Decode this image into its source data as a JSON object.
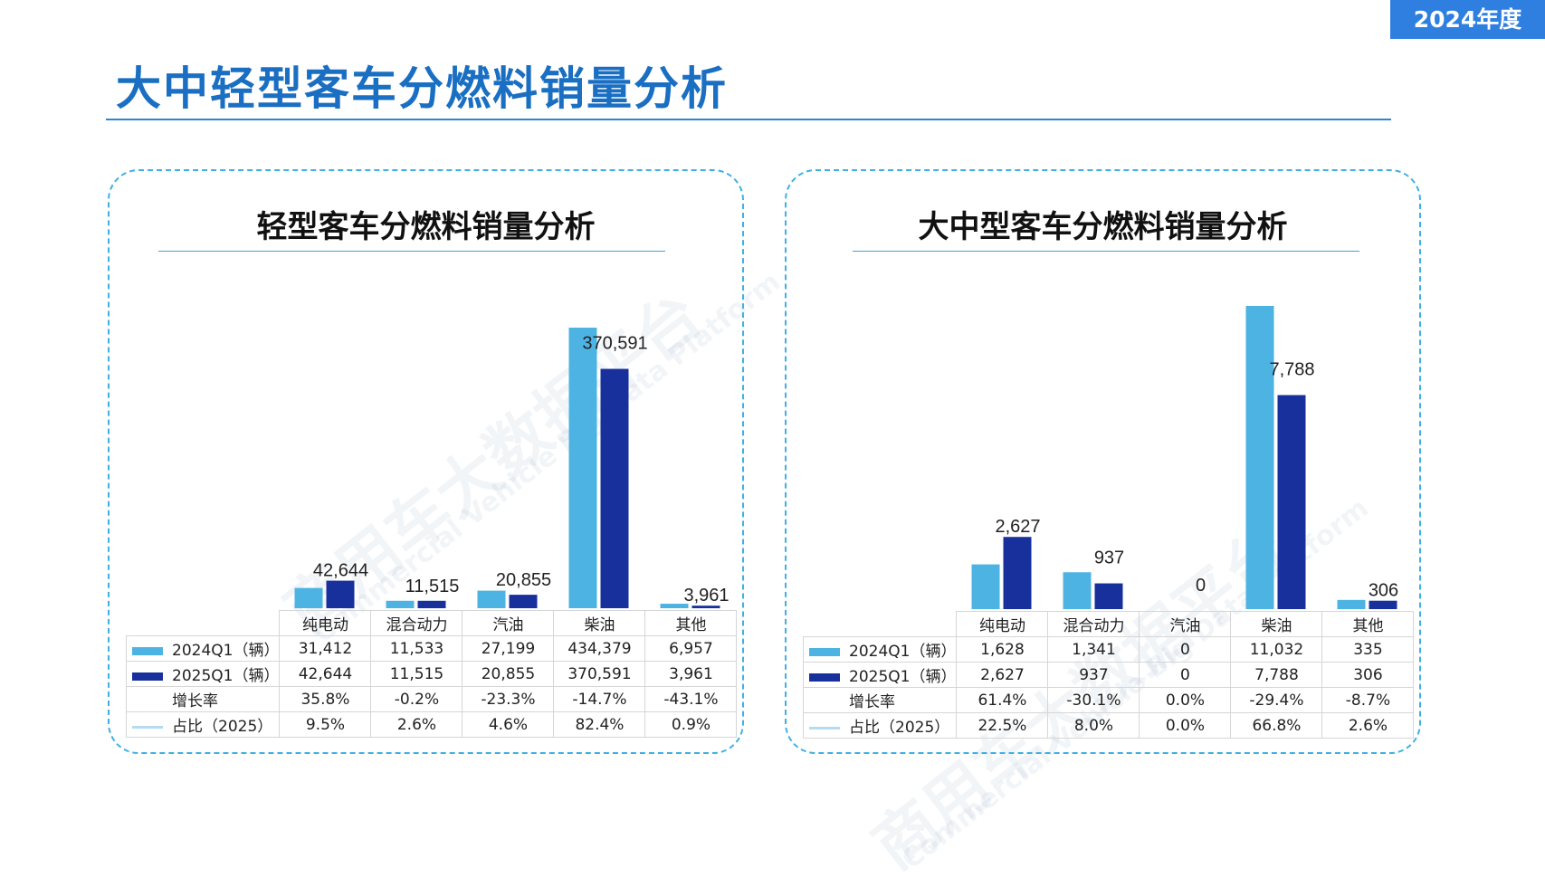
{
  "badge": "2024年度",
  "page_title": "大中轻型客车分燃料销量分析",
  "colors": {
    "light": "#4db3e2",
    "dark": "#17309c",
    "share": "#b3dcf2"
  },
  "watermark": {
    "cn": "商用车大数据平台",
    "en": "Commercial Vehicle Big Data Platform"
  },
  "chart_data": [
    {
      "type": "bar",
      "title": "轻型客车分燃料销量分析",
      "categories": [
        "纯电动",
        "混合动力",
        "汽油",
        "柴油",
        "其他"
      ],
      "series": [
        {
          "name": "2024Q1（辆）",
          "values": [
            31412,
            11533,
            27199,
            434379,
            6957
          ]
        },
        {
          "name": "2025Q1（辆）",
          "values": [
            42644,
            11515,
            20855,
            370591,
            3961
          ]
        }
      ],
      "data_labels": [
        "42,644",
        "11,515",
        "20,855",
        "370,591",
        "3,961"
      ],
      "ylim": [
        0,
        440000
      ],
      "table": {
        "rows": [
          {
            "label": "2024Q1（辆）",
            "key": "light",
            "values": [
              "31,412",
              "11,533",
              "27,199",
              "434,379",
              "6,957"
            ]
          },
          {
            "label": "2025Q1（辆）",
            "key": "dark",
            "values": [
              "42,644",
              "11,515",
              "20,855",
              "370,591",
              "3,961"
            ]
          },
          {
            "label": "增长率",
            "key": "none",
            "values": [
              "35.8%",
              "-0.2%",
              "-23.3%",
              "-14.7%",
              "-43.1%"
            ]
          },
          {
            "label": "占比（2025）",
            "key": "line",
            "values": [
              "9.5%",
              "2.6%",
              "4.6%",
              "82.4%",
              "0.9%"
            ]
          }
        ]
      }
    },
    {
      "type": "bar",
      "title": "大中型客车分燃料销量分析",
      "categories": [
        "纯电动",
        "混合动力",
        "汽油",
        "柴油",
        "其他"
      ],
      "series": [
        {
          "name": "2024Q1（辆）",
          "values": [
            1628,
            1341,
            0,
            11032,
            335
          ]
        },
        {
          "name": "2025Q1（辆）",
          "values": [
            2627,
            937,
            0,
            7788,
            306
          ]
        }
      ],
      "data_labels": [
        "2,627",
        "937",
        "0",
        "7,788",
        "306"
      ],
      "ylim": [
        0,
        11032
      ],
      "table": {
        "rows": [
          {
            "label": "2024Q1（辆）",
            "key": "light",
            "values": [
              "1,628",
              "1,341",
              "0",
              "11,032",
              "335"
            ]
          },
          {
            "label": "2025Q1（辆）",
            "key": "dark",
            "values": [
              "2,627",
              "937",
              "0",
              "7,788",
              "306"
            ]
          },
          {
            "label": "增长率",
            "key": "none",
            "values": [
              "61.4%",
              "-30.1%",
              "0.0%",
              "-29.4%",
              "-8.7%"
            ]
          },
          {
            "label": "占比（2025）",
            "key": "line",
            "values": [
              "22.5%",
              "8.0%",
              "0.0%",
              "66.8%",
              "2.6%"
            ]
          }
        ]
      }
    }
  ]
}
